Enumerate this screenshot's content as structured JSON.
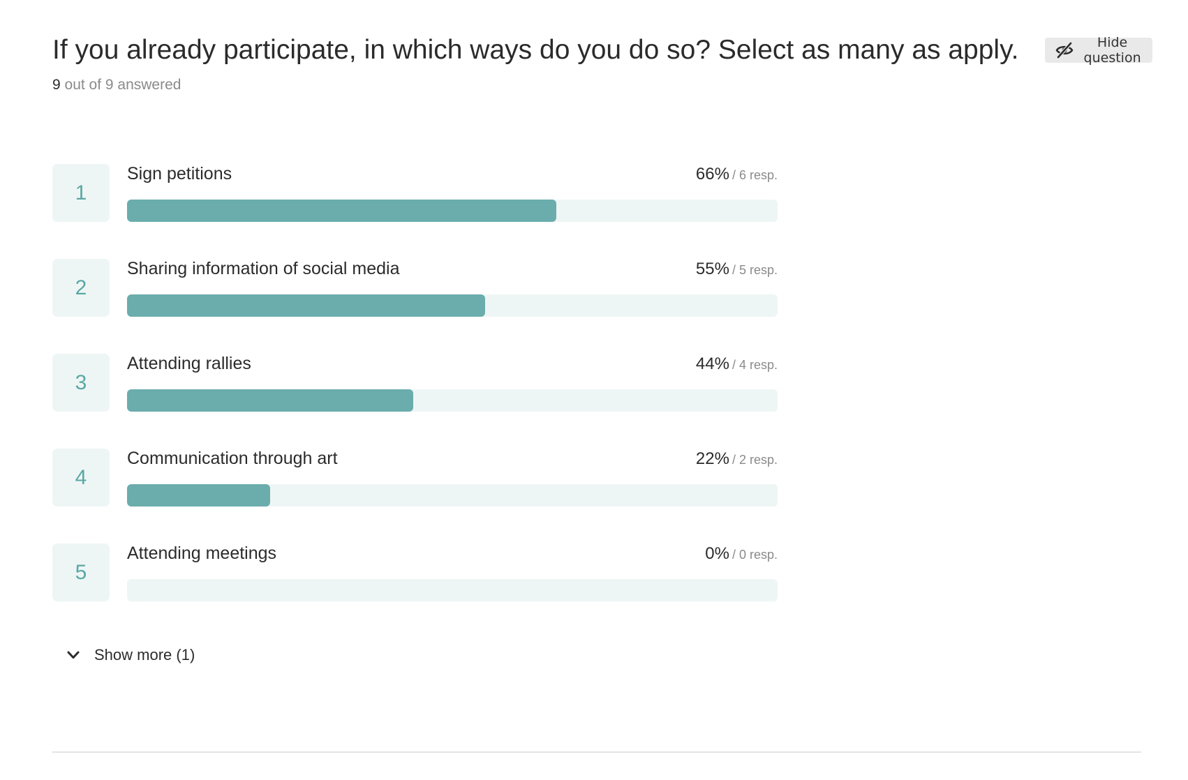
{
  "question": {
    "title": "If you already participate, in which ways do you do so? Select as many as apply.",
    "hide_label": "Hide question",
    "hide_icon": "eye-slash-icon",
    "answered_count": "9",
    "answered_rest": " out of 9 answered"
  },
  "options": [
    {
      "rank": "1",
      "label": "Sign petitions",
      "percent_text": "66%",
      "resp_text": "/ 6 resp.",
      "percent": 66
    },
    {
      "rank": "2",
      "label": "Sharing information of social media",
      "percent_text": "55%",
      "resp_text": "/ 5 resp.",
      "percent": 55
    },
    {
      "rank": "3",
      "label": "Attending rallies",
      "percent_text": "44%",
      "resp_text": "/ 4 resp.",
      "percent": 44
    },
    {
      "rank": "4",
      "label": "Communication through art",
      "percent_text": "22%",
      "resp_text": "/ 2 resp.",
      "percent": 22
    },
    {
      "rank": "5",
      "label": "Attending meetings",
      "percent_text": "0%",
      "resp_text": "/ 0 resp.",
      "percent": 0
    }
  ],
  "show_more": {
    "label": "Show more (1)",
    "icon": "chevron-down-icon"
  },
  "colors": {
    "accent": "#6aadac",
    "track": "#eef6f5",
    "rank_text": "#5aa8a4",
    "button_bg": "#e9e9e9"
  }
}
